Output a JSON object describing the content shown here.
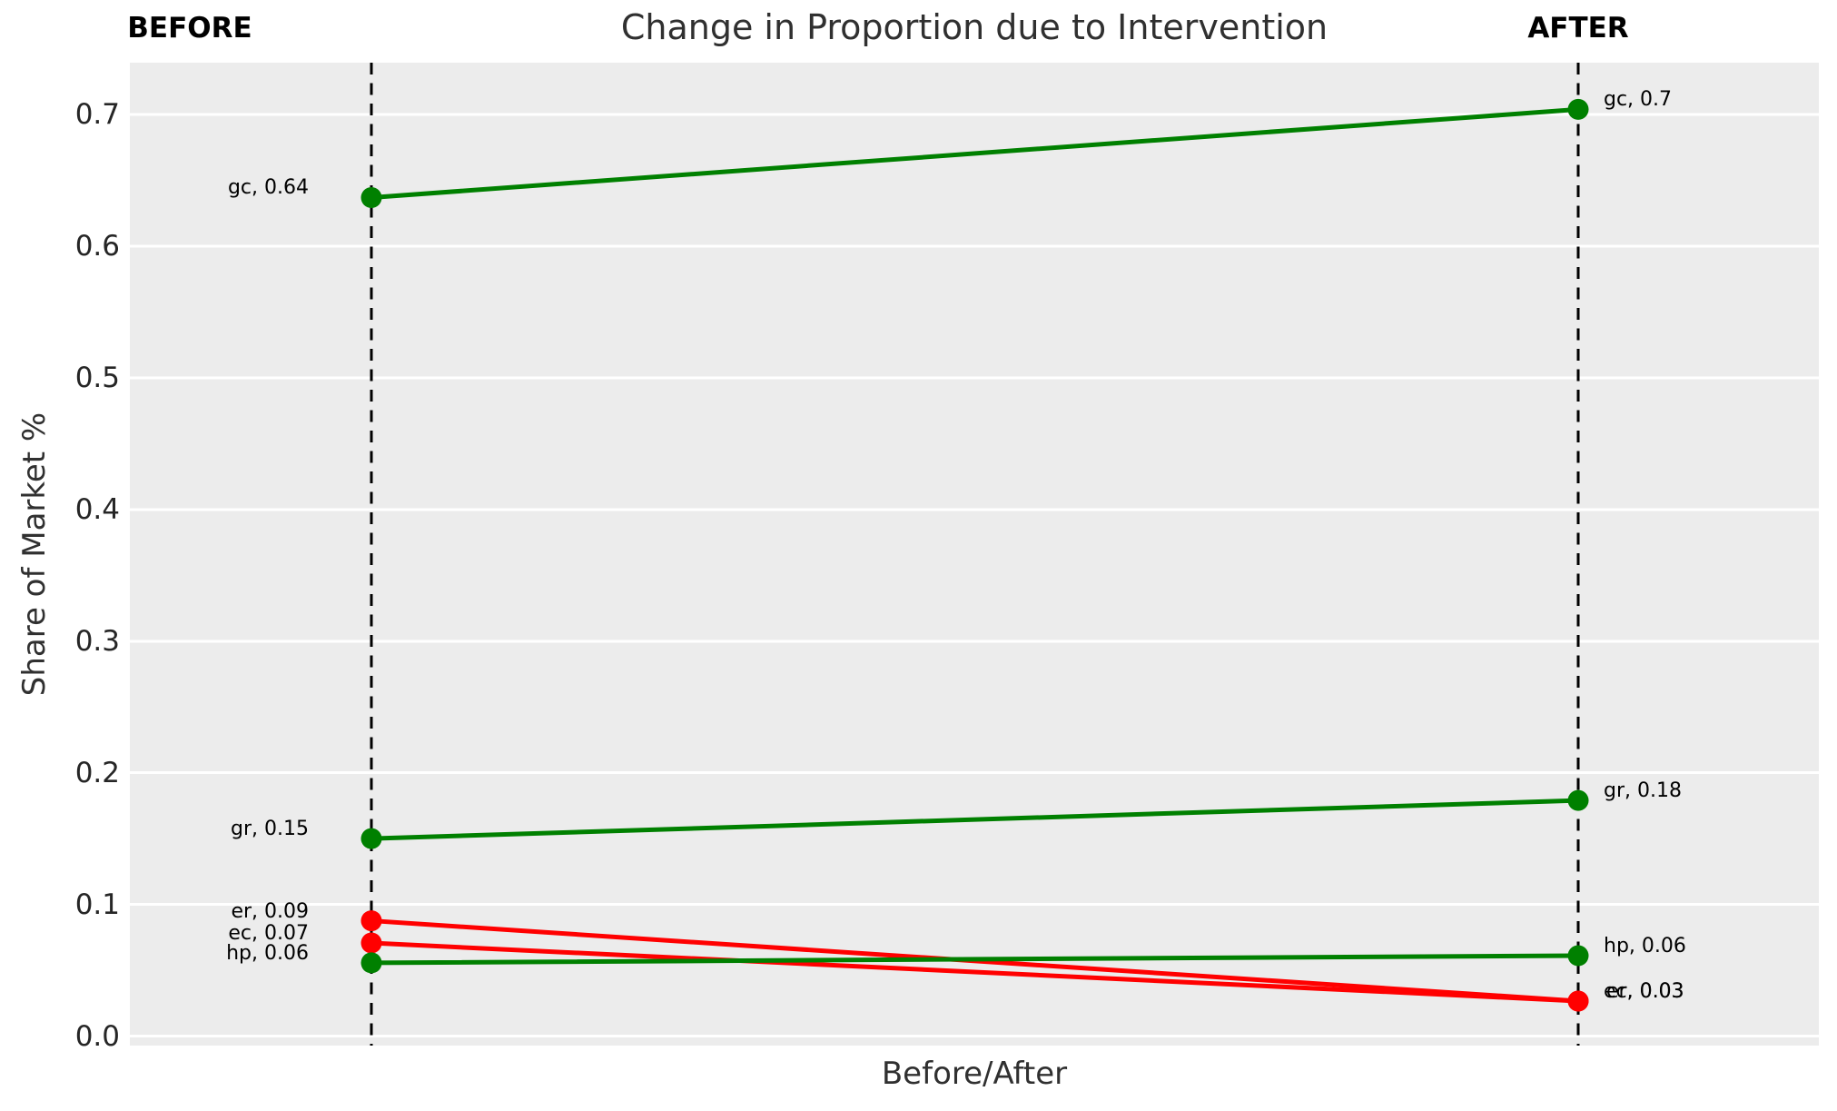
{
  "chart_data": {
    "type": "line",
    "variant": "slopegraph",
    "title": "Change in Proportion due to Intervention",
    "xlabel": "Before/After",
    "ylabel": "Share of Market %",
    "column_headers": {
      "before": "BEFORE",
      "after": "AFTER"
    },
    "x_categories": [
      "BEFORE",
      "AFTER"
    ],
    "y_ticks": [
      "0.0",
      "0.1",
      "0.2",
      "0.3",
      "0.4",
      "0.5",
      "0.6",
      "0.7"
    ],
    "ylim": [
      -0.008,
      0.744
    ],
    "grid": true,
    "plot_background": "#ececec",
    "grid_color": "#ffffff",
    "reference_line_color": "#000000",
    "increase_color": "#008000",
    "decrease_color": "#ff0000",
    "series": [
      {
        "name": "gc",
        "before": 0.64,
        "after": 0.7,
        "before_precise": 0.637,
        "after_precise": 0.704,
        "color": "#008000",
        "direction": "increase",
        "label_before": "gc, 0.64",
        "label_after": "gc, 0.7"
      },
      {
        "name": "gr",
        "before": 0.15,
        "after": 0.18,
        "before_precise": 0.15,
        "after_precise": 0.179,
        "color": "#008000",
        "direction": "increase",
        "label_before": "gr, 0.15",
        "label_after": "gr, 0.18"
      },
      {
        "name": "er",
        "before": 0.09,
        "after": 0.03,
        "before_precise": 0.0876,
        "after_precise": 0.0266,
        "color": "#ff0000",
        "direction": "decrease",
        "label_before": "er, 0.09",
        "label_after": "er, 0.03"
      },
      {
        "name": "ec",
        "before": 0.07,
        "after": 0.03,
        "before_precise": 0.0707,
        "after_precise": 0.0266,
        "color": "#ff0000",
        "direction": "decrease",
        "label_before": "ec, 0.07",
        "label_after": "ec, 0.03"
      },
      {
        "name": "hp",
        "before": 0.06,
        "after": 0.06,
        "before_precise": 0.0556,
        "after_precise": 0.0611,
        "color": "#008000",
        "direction": "increase",
        "label_before": "hp, 0.06",
        "label_after": "hp, 0.06"
      }
    ]
  }
}
